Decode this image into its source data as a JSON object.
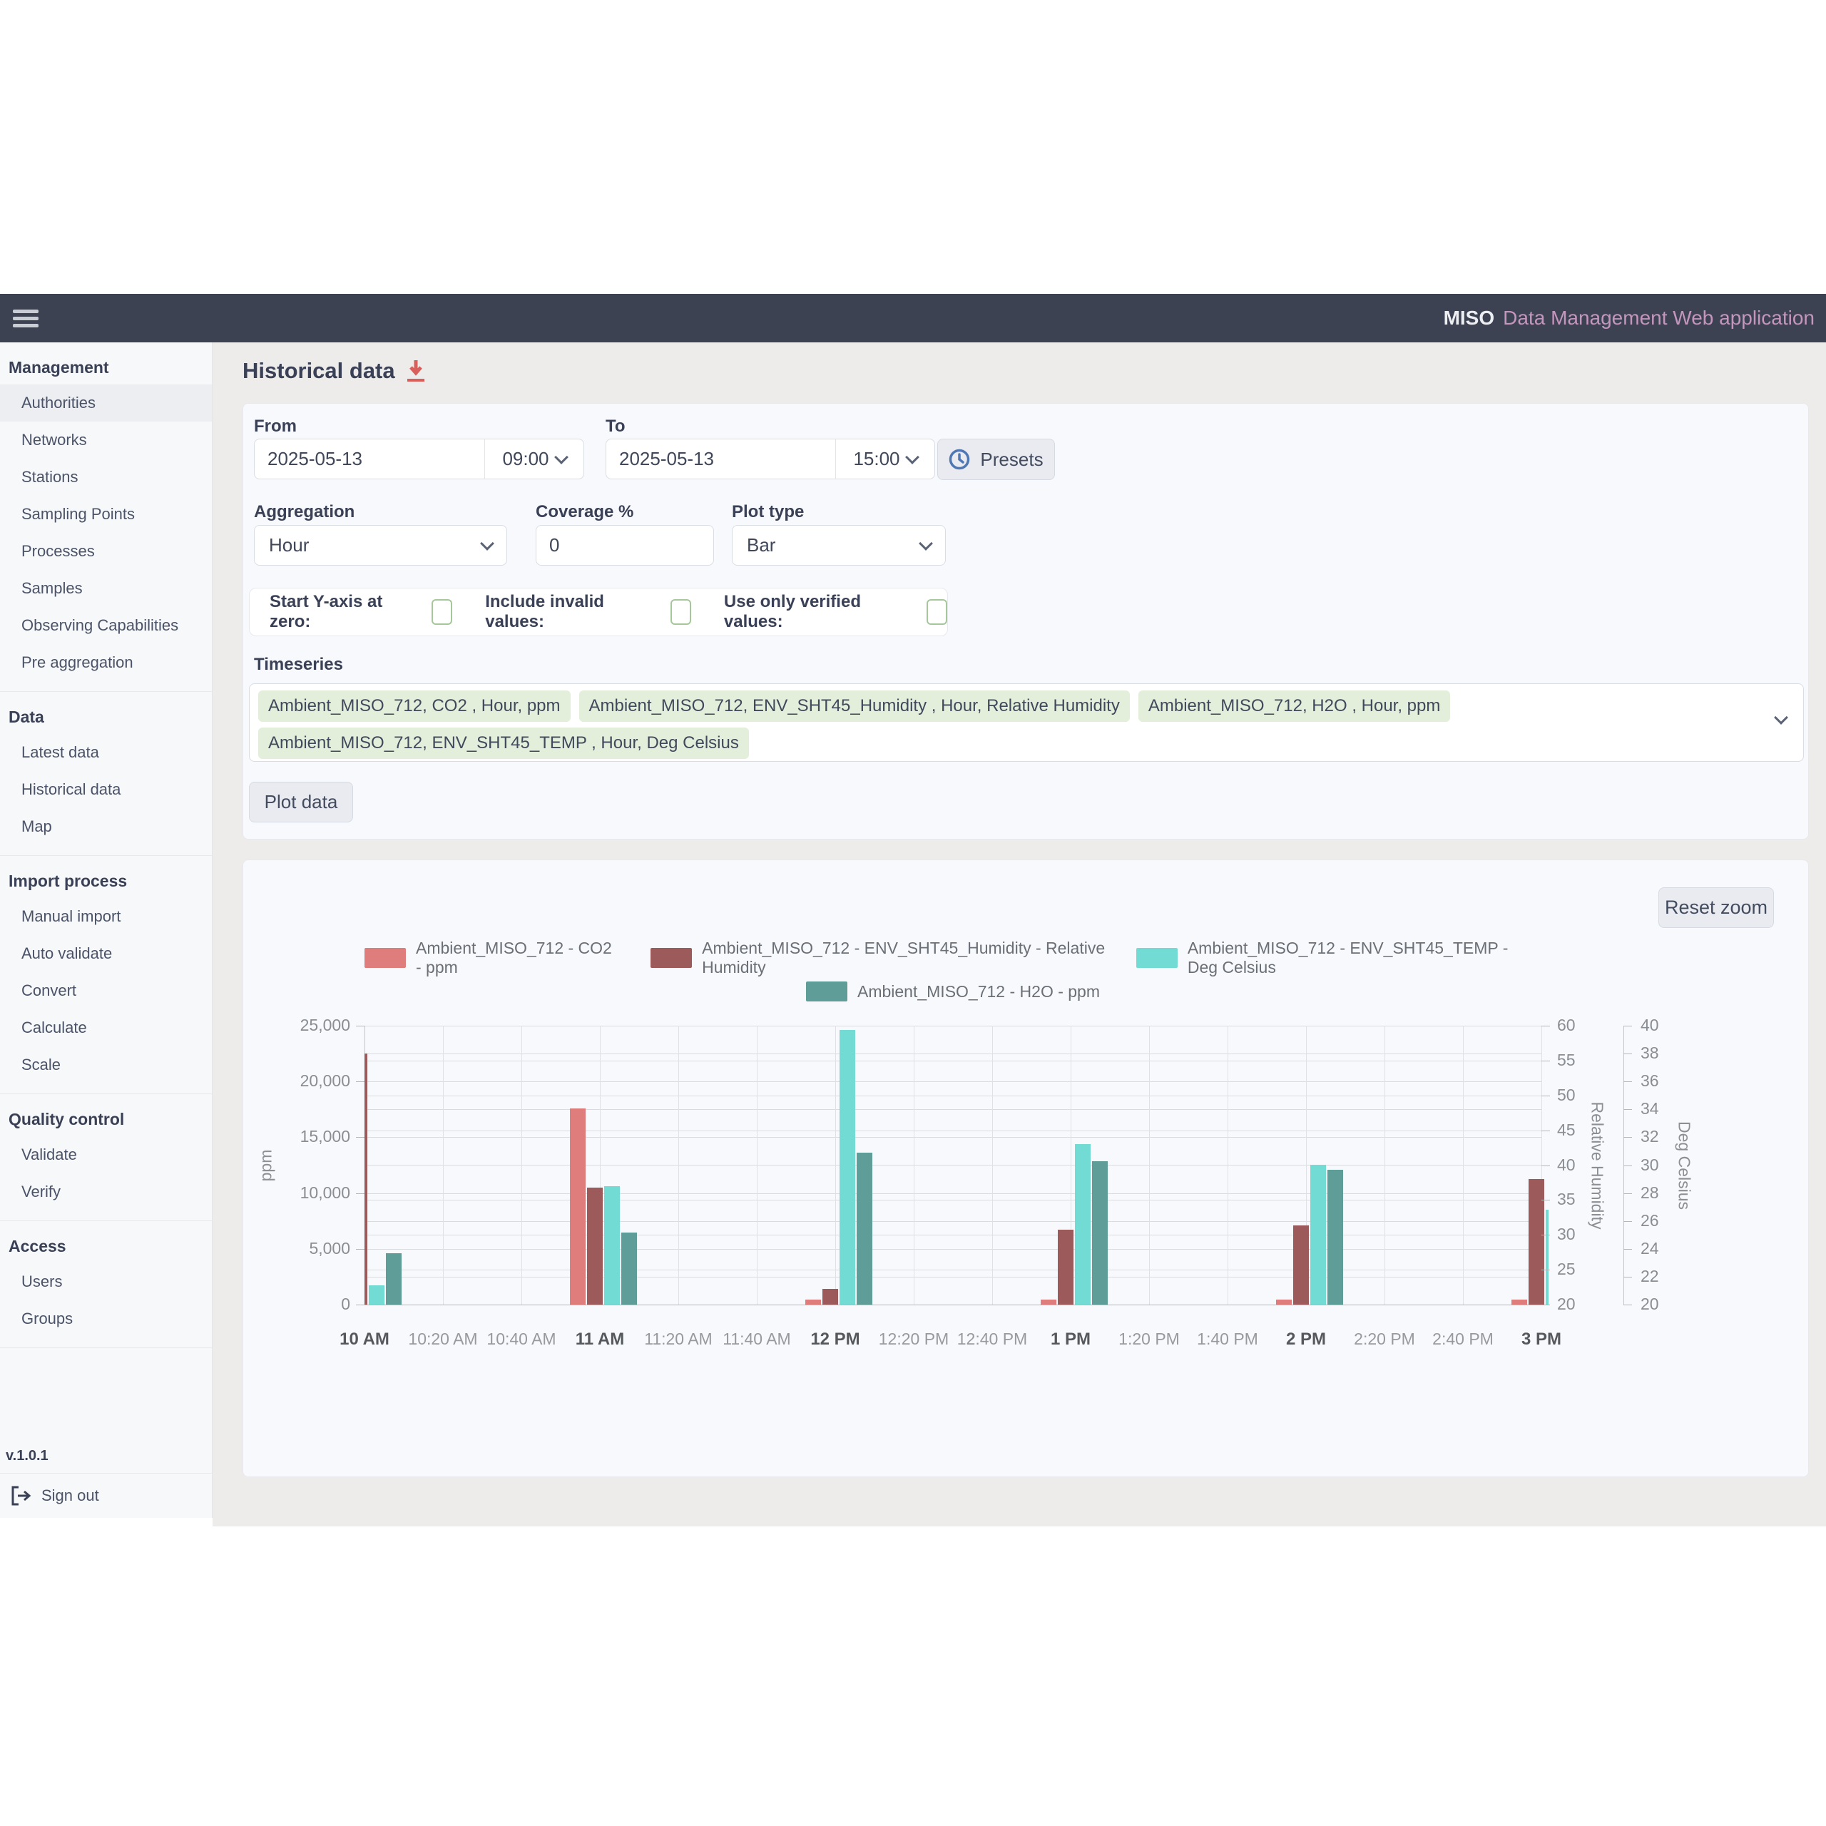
{
  "nav": {
    "brand": "MISO",
    "app_title": "Data Management Web application"
  },
  "page": {
    "title": "Historical data"
  },
  "sidebar": {
    "version": "v.1.0.1",
    "sign_out": "Sign out",
    "sections": [
      {
        "header": "Management",
        "items": [
          {
            "label": "Authorities",
            "active": true
          },
          {
            "label": "Networks"
          },
          {
            "label": "Stations"
          },
          {
            "label": "Sampling Points"
          },
          {
            "label": "Processes"
          },
          {
            "label": "Samples"
          },
          {
            "label": "Observing Capabilities"
          },
          {
            "label": "Pre aggregation"
          }
        ]
      },
      {
        "header": "Data",
        "items": [
          {
            "label": "Latest data"
          },
          {
            "label": "Historical data"
          },
          {
            "label": "Map"
          }
        ]
      },
      {
        "header": "Import process",
        "items": [
          {
            "label": "Manual import"
          },
          {
            "label": "Auto validate"
          },
          {
            "label": "Convert"
          },
          {
            "label": "Calculate"
          },
          {
            "label": "Scale"
          }
        ]
      },
      {
        "header": "Quality control",
        "items": [
          {
            "label": "Validate"
          },
          {
            "label": "Verify"
          }
        ]
      },
      {
        "header": "Access",
        "items": [
          {
            "label": "Users"
          },
          {
            "label": "Groups"
          }
        ]
      }
    ]
  },
  "filters": {
    "from_label": "From",
    "to_label": "To",
    "from_date": "2025-05-13",
    "from_time": "09:00",
    "to_date": "2025-05-13",
    "to_time": "15:00",
    "presets_label": "Presets",
    "aggregation_label": "Aggregation",
    "aggregation_value": "Hour",
    "coverage_label": "Coverage %",
    "coverage_value": "0",
    "plot_type_label": "Plot type",
    "plot_type_value": "Bar",
    "toggles": [
      {
        "label": "Start Y-axis at zero:",
        "checked": false
      },
      {
        "label": "Include invalid values:",
        "checked": false
      },
      {
        "label": "Use only verified values:",
        "checked": false
      }
    ],
    "timeseries_label": "Timeseries",
    "timeseries_tags": [
      "Ambient_MISO_712, CO2 , Hour, ppm",
      "Ambient_MISO_712, ENV_SHT45_Humidity , Hour, Relative Humidity",
      "Ambient_MISO_712, H2O , Hour, ppm",
      "Ambient_MISO_712, ENV_SHT45_TEMP , Hour, Deg Celsius"
    ],
    "plot_button": "Plot data"
  },
  "chart_controls": {
    "reset_zoom": "Reset zoom"
  },
  "chart_data": {
    "type": "bar",
    "x_tick_labels": [
      "10 AM",
      "10:20 AM",
      "10:40 AM",
      "11 AM",
      "11:20 AM",
      "11:40 AM",
      "12 PM",
      "12:20 PM",
      "12:40 PM",
      "1 PM",
      "1:20 PM",
      "1:40 PM",
      "2 PM",
      "2:20 PM",
      "2:40 PM",
      "3 PM"
    ],
    "categories": [
      "10 AM",
      "11 AM",
      "12 PM",
      "1 PM",
      "2 PM",
      "3 PM"
    ],
    "series": [
      {
        "name": "Ambient_MISO_712 - CO2  - ppm",
        "axis": "ppm",
        "color": "#df7d7d",
        "values": [
          null,
          17600,
          450,
          450,
          450,
          450
        ]
      },
      {
        "name": "Ambient_MISO_712 - ENV_SHT45_Humidity  - Relative Humidity",
        "axis": "rh",
        "color": "#9c5a5a",
        "values": [
          56,
          36.8,
          22.3,
          30.7,
          31.4,
          38
        ]
      },
      {
        "name": "Ambient_MISO_712 - ENV_SHT45_TEMP  - Deg Celsius",
        "axis": "degc",
        "color": "#72dbd4",
        "values": [
          21.4,
          28.5,
          39.7,
          31.5,
          30,
          26.8
        ]
      },
      {
        "name": "Ambient_MISO_712 - H2O  - ppm",
        "axis": "ppm",
        "color": "#5f9d98",
        "values": [
          4600,
          6450,
          13600,
          12850,
          12100,
          null
        ]
      }
    ],
    "axes": {
      "ppm": {
        "label": "ppm",
        "min": 0,
        "max": 25000,
        "ticks": [
          0,
          5000,
          10000,
          15000,
          20000,
          25000
        ]
      },
      "rh": {
        "label": "Relative Humidity",
        "min": 20,
        "max": 60,
        "step": 5
      },
      "degc": {
        "label": "Deg Celsius",
        "min": 20,
        "max": 40,
        "step": 2
      }
    },
    "grid": true,
    "legend_position": "top"
  }
}
